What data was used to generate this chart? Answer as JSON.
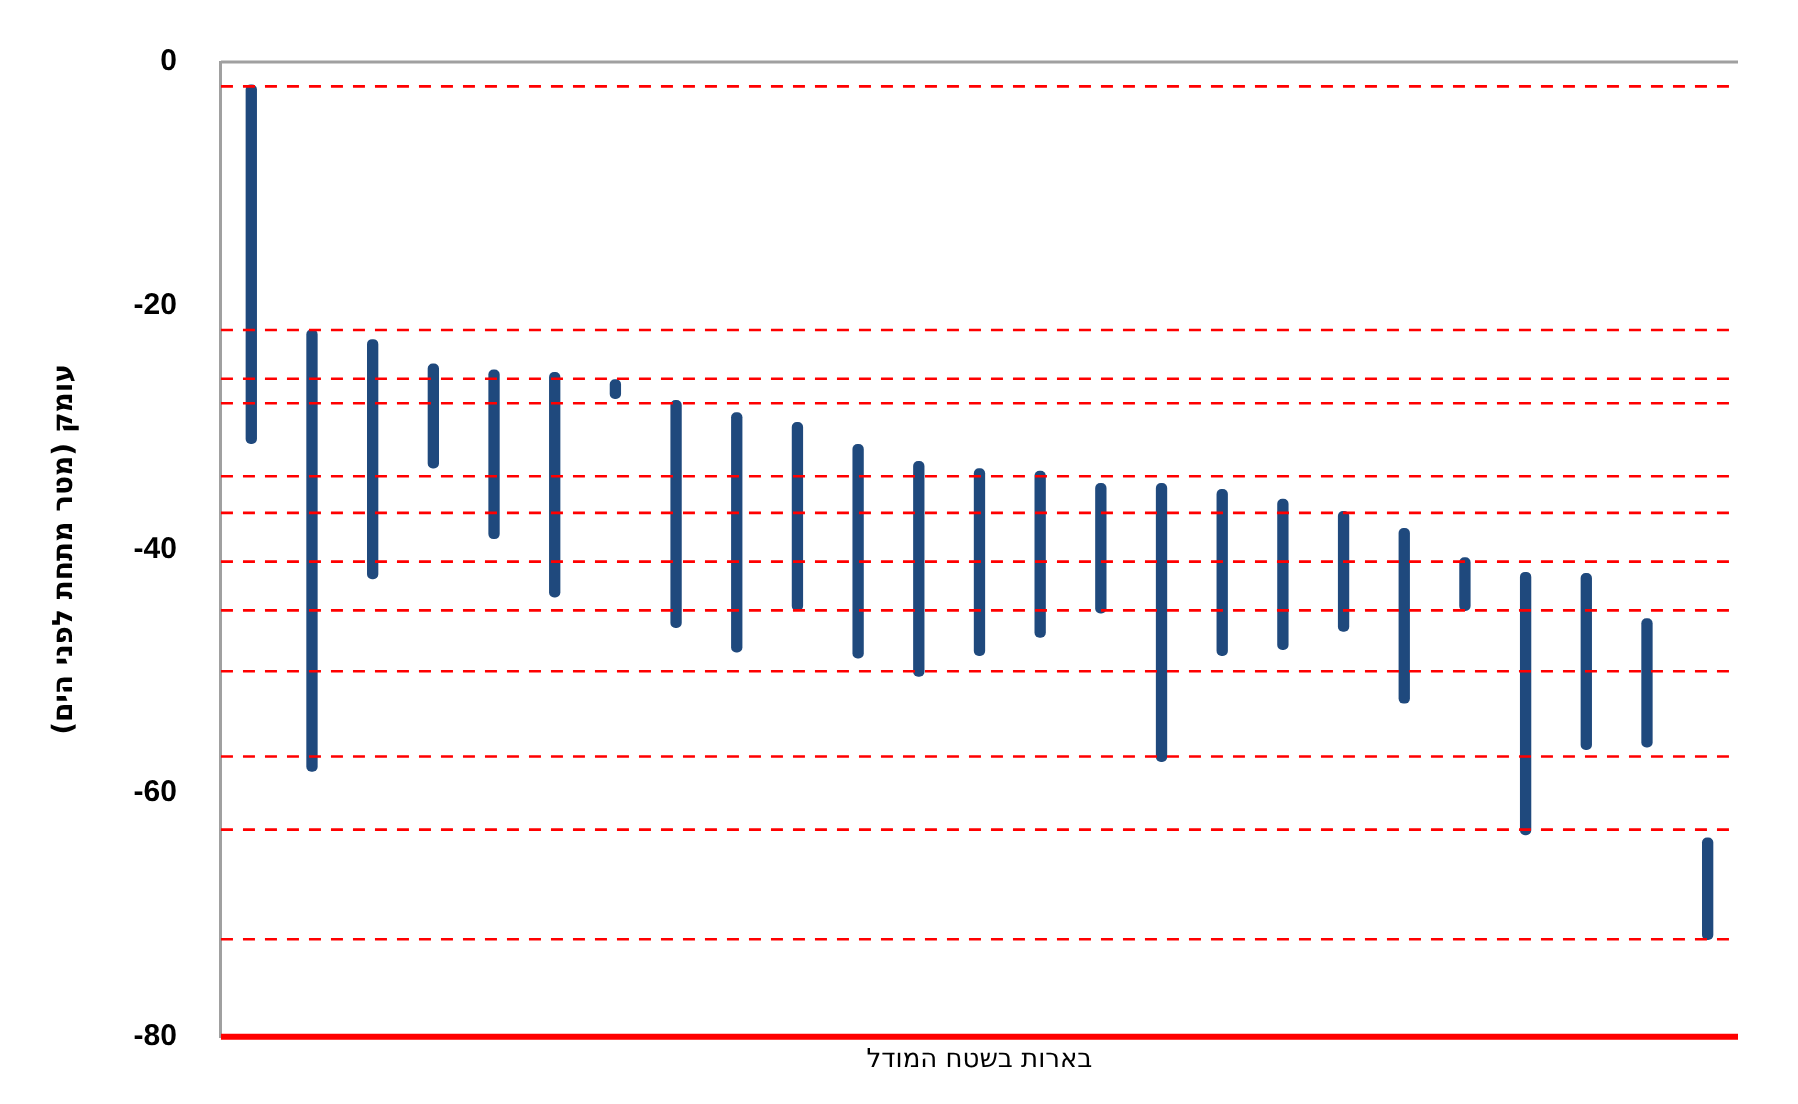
{
  "chart_data": {
    "type": "bar",
    "xlabel": "בארות בשטח המודל",
    "ylabel": "עומק (מטר מתחת לפני הים)",
    "categories": [
      null,
      null,
      null,
      null,
      null,
      null,
      null,
      null,
      null,
      null,
      null,
      null,
      null,
      null,
      null,
      null,
      null,
      null,
      null,
      null,
      null,
      null,
      null,
      null,
      null
    ],
    "base": [
      -1.9,
      -22,
      -22.8,
      -24.8,
      -25.3,
      -25.5,
      -26.1,
      -27.8,
      -28.8,
      -29.6,
      -31.4,
      -32.8,
      -33.4,
      -33.6,
      -34.6,
      -34.6,
      -35.1,
      -35.9,
      -36.9,
      -38.3,
      -40.7,
      -41.9,
      -42,
      -45.7,
      -63.7
    ],
    "values": [
      -29.4,
      -36.2,
      -19.6,
      -8.5,
      -13.8,
      -18.4,
      -1.5,
      -18.6,
      -19.6,
      -15.4,
      -17.5,
      -17.6,
      -15.3,
      -13.6,
      -10.6,
      -22.8,
      -13.6,
      -12.3,
      -9.8,
      -14.3,
      -4.3,
      -21.5,
      -14.4,
      -10.5,
      -8.3
    ],
    "color": "#1f497d",
    "ylim": [
      -80,
      0
    ],
    "yticks": [
      0,
      -20,
      -40,
      -60,
      -80
    ],
    "grid": false,
    "ref_lines": [
      {
        "axis": "y",
        "value": -2,
        "color": "#ff0000",
        "line_style": "dashed"
      },
      {
        "axis": "y",
        "value": -22,
        "color": "#ff0000",
        "line_style": "dashed"
      },
      {
        "axis": "y",
        "value": -26,
        "color": "#ff0000",
        "line_style": "dashed"
      },
      {
        "axis": "y",
        "value": -28,
        "color": "#ff0000",
        "line_style": "dashed"
      },
      {
        "axis": "y",
        "value": -34,
        "color": "#ff0000",
        "line_style": "dashed"
      },
      {
        "axis": "y",
        "value": -37,
        "color": "#ff0000",
        "line_style": "dashed"
      },
      {
        "axis": "y",
        "value": -41,
        "color": "#ff0000",
        "line_style": "dashed"
      },
      {
        "axis": "y",
        "value": -45,
        "color": "#ff0000",
        "line_style": "dashed"
      },
      {
        "axis": "y",
        "value": -50,
        "color": "#ff0000",
        "line_style": "dashed"
      },
      {
        "axis": "y",
        "value": -57,
        "color": "#ff0000",
        "line_style": "dashed"
      },
      {
        "axis": "y",
        "value": -63,
        "color": "#ff0000",
        "line_style": "dashed"
      },
      {
        "axis": "y",
        "value": -72,
        "color": "#ff0000",
        "line_style": "dashed"
      },
      {
        "axis": "y",
        "value": -80,
        "color": "#ff0000",
        "line_style": "solid"
      }
    ],
    "legend": false
  }
}
